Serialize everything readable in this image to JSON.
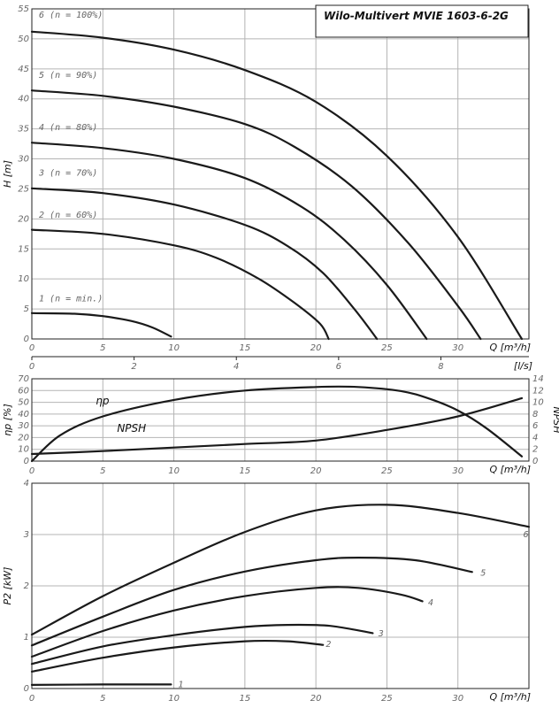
{
  "title": "Wilo-Multivert MVIE 1603-6-2G",
  "chart_data": [
    {
      "id": "head",
      "type": "line",
      "xlabel": "Q [m³/h]",
      "ylabel": "H [m]",
      "xlim": [
        0,
        35
      ],
      "ylim": [
        0,
        55
      ],
      "x_ticks": [
        "0",
        "5",
        "10",
        "15",
        "20",
        "25",
        "30"
      ],
      "y_ticks": [
        "0",
        "5",
        "10",
        "15",
        "20",
        "25",
        "30",
        "35",
        "40",
        "45",
        "50",
        "55"
      ],
      "secondary_x_label": "[l/s]",
      "secondary_x_lim": [
        0,
        9.722
      ],
      "secondary_x_ticks": [
        "0",
        "2",
        "4",
        "6",
        "8"
      ],
      "grid": true,
      "series": [
        {
          "name": "6 (n = 100%)",
          "label_at": [
            0.5,
            53.5
          ],
          "points": [
            [
              0,
              51.2
            ],
            [
              5,
              50.2
            ],
            [
              10,
              48.2
            ],
            [
              15,
              44.8
            ],
            [
              20,
              39.5
            ],
            [
              25,
              30.5
            ],
            [
              30,
              17
            ],
            [
              34.5,
              0
            ]
          ]
        },
        {
          "name": "5 (n = 90%)",
          "label_at": [
            0.5,
            43.5
          ],
          "points": [
            [
              0,
              41.4
            ],
            [
              5,
              40.5
            ],
            [
              10,
              38.7
            ],
            [
              15,
              35.8
            ],
            [
              18.5,
              32
            ],
            [
              22.5,
              25.5
            ],
            [
              26.5,
              16
            ],
            [
              30,
              5.5
            ],
            [
              31.6,
              0
            ]
          ]
        },
        {
          "name": "4 (n = 80%)",
          "label_at": [
            0.5,
            34.8
          ],
          "points": [
            [
              0,
              32.7
            ],
            [
              5,
              31.8
            ],
            [
              10,
              30
            ],
            [
              15,
              26.8
            ],
            [
              19,
              22
            ],
            [
              22,
              16.5
            ],
            [
              25,
              9
            ],
            [
              27.8,
              0
            ]
          ]
        },
        {
          "name": "3 (n = 70%)",
          "label_at": [
            0.5,
            27.2
          ],
          "points": [
            [
              0,
              25.1
            ],
            [
              5,
              24.3
            ],
            [
              10,
              22.4
            ],
            [
              15,
              19
            ],
            [
              18,
              15.5
            ],
            [
              20.5,
              11
            ],
            [
              22.7,
              5
            ],
            [
              24.3,
              0
            ]
          ]
        },
        {
          "name": "2 (n = 60%)",
          "label_at": [
            0.5,
            20.2
          ],
          "points": [
            [
              0,
              18.2
            ],
            [
              5,
              17.5
            ],
            [
              10,
              15.6
            ],
            [
              13,
              13.5
            ],
            [
              16,
              10
            ],
            [
              18.5,
              6
            ],
            [
              20.3,
              2.5
            ],
            [
              20.9,
              0
            ]
          ]
        },
        {
          "name": "1 (n = min.)",
          "label_at": [
            0.5,
            6.3
          ],
          "points": [
            [
              0,
              4.3
            ],
            [
              3,
              4.2
            ],
            [
              5,
              3.8
            ],
            [
              7,
              3
            ],
            [
              8.5,
              1.9
            ],
            [
              9.8,
              0.4
            ]
          ]
        }
      ]
    },
    {
      "id": "efficiency",
      "type": "line",
      "xlabel": "Q [m³/h]",
      "ylabel": "ηp [%]",
      "y2label": "NPSH",
      "xlim": [
        0,
        35
      ],
      "ylim": [
        0,
        70
      ],
      "y2lim": [
        0,
        14
      ],
      "x_ticks": [
        "0",
        "5",
        "10",
        "15",
        "20",
        "25",
        "30"
      ],
      "y_ticks": [
        "0",
        "10",
        "20",
        "30",
        "40",
        "50",
        "60",
        "70"
      ],
      "y2_ticks": [
        "0",
        "2",
        "4",
        "6",
        "8",
        "10",
        "12",
        "14"
      ],
      "grid": true,
      "series": [
        {
          "name": "ηp",
          "axis": "left",
          "label_at": [
            4.5,
            48
          ],
          "points": [
            [
              0,
              0
            ],
            [
              2,
              22
            ],
            [
              5,
              38
            ],
            [
              10,
              52
            ],
            [
              15,
              60
            ],
            [
              20,
              63
            ],
            [
              23,
              63
            ],
            [
              26,
              59.5
            ],
            [
              28,
              53
            ],
            [
              30,
              43
            ],
            [
              32,
              28
            ],
            [
              34.5,
              4
            ]
          ]
        },
        {
          "name": "NPSH",
          "axis": "right",
          "label_at": [
            6,
            5
          ],
          "points": [
            [
              0,
              1.2
            ],
            [
              5,
              1.7
            ],
            [
              10,
              2.3
            ],
            [
              15,
              2.9
            ],
            [
              20,
              3.5
            ],
            [
              25,
              5.3
            ],
            [
              30,
              7.6
            ],
            [
              34.5,
              10.7
            ]
          ]
        }
      ]
    },
    {
      "id": "power",
      "type": "line",
      "xlabel": "Q [m³/h]",
      "ylabel": "P2 [kW]",
      "xlim": [
        0,
        35
      ],
      "ylim": [
        0,
        4
      ],
      "x_ticks": [
        "0",
        "5",
        "10",
        "15",
        "20",
        "25",
        "30"
      ],
      "y_ticks": [
        "0",
        "1",
        "2",
        "3",
        "4"
      ],
      "grid": true,
      "series": [
        {
          "name": "6",
          "label_at": [
            34.6,
            2.95
          ],
          "points": [
            [
              0,
              1.05
            ],
            [
              5,
              1.8
            ],
            [
              10,
              2.45
            ],
            [
              15,
              3.05
            ],
            [
              20,
              3.47
            ],
            [
              25,
              3.58
            ],
            [
              30,
              3.42
            ],
            [
              35,
              3.15
            ]
          ]
        },
        {
          "name": "5",
          "label_at": [
            31.6,
            2.2
          ],
          "points": [
            [
              0,
              0.84
            ],
            [
              5,
              1.4
            ],
            [
              10,
              1.92
            ],
            [
              15,
              2.28
            ],
            [
              20,
              2.5
            ],
            [
              23,
              2.55
            ],
            [
              27,
              2.5
            ],
            [
              31,
              2.27
            ]
          ]
        },
        {
          "name": "4",
          "label_at": [
            27.9,
            1.62
          ],
          "points": [
            [
              0,
              0.62
            ],
            [
              5,
              1.12
            ],
            [
              10,
              1.52
            ],
            [
              15,
              1.8
            ],
            [
              20,
              1.96
            ],
            [
              23,
              1.96
            ],
            [
              26,
              1.83
            ],
            [
              27.5,
              1.7
            ]
          ]
        },
        {
          "name": "3",
          "label_at": [
            24.4,
            1.02
          ],
          "points": [
            [
              0,
              0.48
            ],
            [
              5,
              0.82
            ],
            [
              10,
              1.04
            ],
            [
              15,
              1.2
            ],
            [
              18,
              1.24
            ],
            [
              21,
              1.22
            ],
            [
              24,
              1.08
            ]
          ]
        },
        {
          "name": "2",
          "label_at": [
            20.7,
            0.81
          ],
          "points": [
            [
              0,
              0.33
            ],
            [
              5,
              0.6
            ],
            [
              10,
              0.8
            ],
            [
              15,
              0.92
            ],
            [
              18,
              0.92
            ],
            [
              20.5,
              0.85
            ]
          ]
        },
        {
          "name": "1",
          "label_at": [
            10.3,
            0.03
          ],
          "points": [
            [
              0,
              0.07
            ],
            [
              5,
              0.08
            ],
            [
              9.8,
              0.08
            ]
          ]
        }
      ]
    }
  ]
}
